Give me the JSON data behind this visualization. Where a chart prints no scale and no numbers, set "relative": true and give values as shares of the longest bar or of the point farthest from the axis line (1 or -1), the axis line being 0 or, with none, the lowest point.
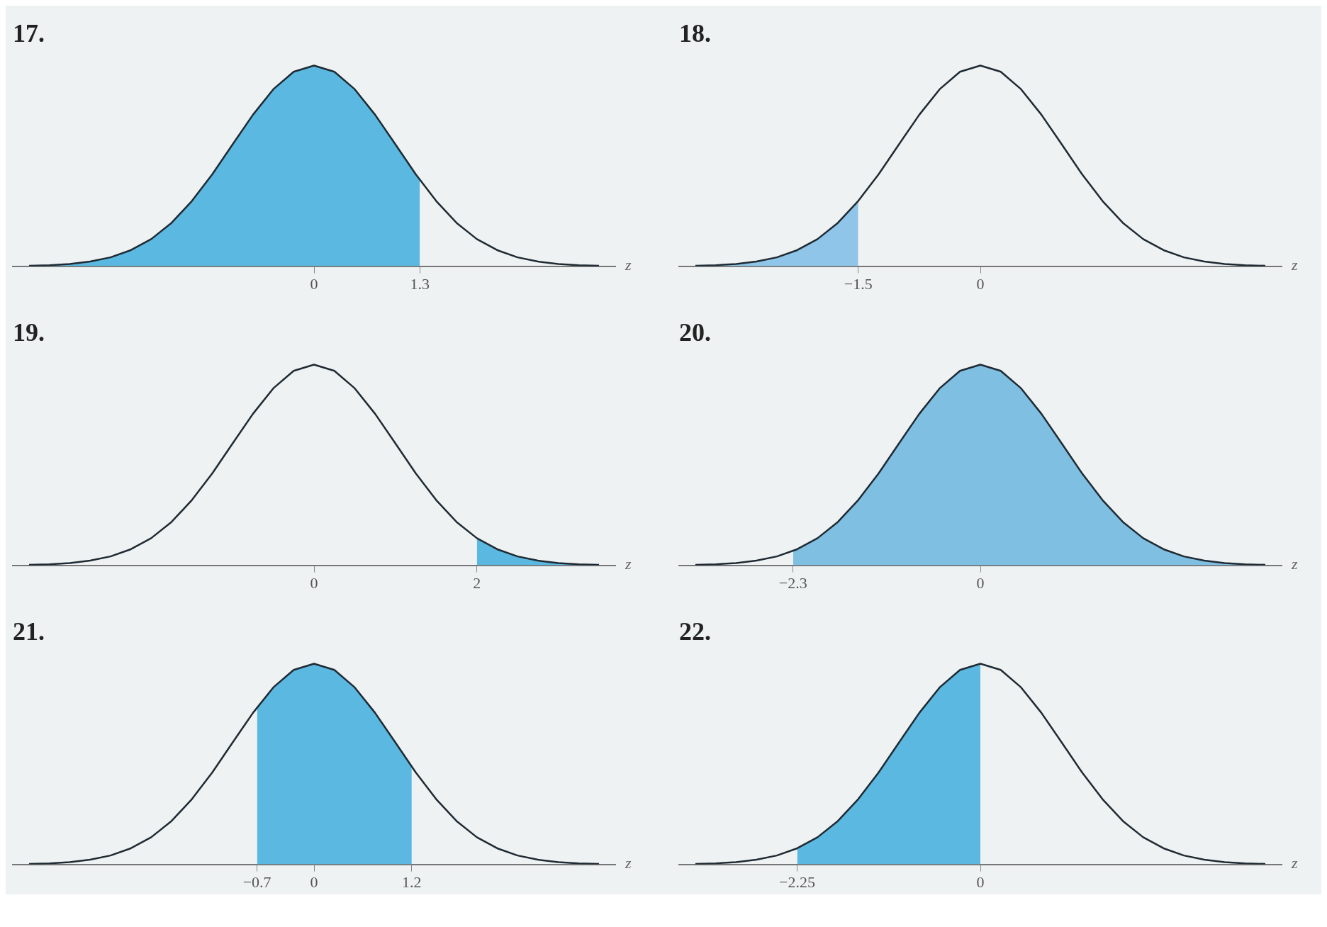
{
  "chart_data": [
    {
      "type": "line",
      "title": "17.",
      "xlabel": "z",
      "relative": true,
      "xlim": [
        -3.7,
        3.7
      ],
      "xticks": [
        0,
        1.3
      ],
      "tick_labels": "x",
      "grid": false,
      "legend": false,
      "series": [
        {
          "type": "area",
          "color": "#5bb8e0",
          "x": [
            -3.5,
            -3.25,
            -3,
            -2.75,
            -2.5,
            -2.25,
            -2,
            -1.75,
            -1.5,
            -1.25,
            -1,
            -0.75,
            -0.5,
            -0.25,
            0,
            0.25,
            0.5,
            0.75,
            1,
            1.25,
            1.3
          ],
          "values": [
            0.002,
            0.005,
            0.011,
            0.023,
            0.044,
            0.08,
            0.135,
            0.216,
            0.325,
            0.458,
            0.607,
            0.755,
            0.882,
            0.969,
            1,
            0.969,
            0.882,
            0.755,
            0.607,
            0.458,
            0.43
          ]
        },
        {
          "type": "line",
          "color": "#1f2a33",
          "x": [
            -3.5,
            -3.25,
            -3,
            -2.75,
            -2.5,
            -2.25,
            -2,
            -1.75,
            -1.5,
            -1.25,
            -1,
            -0.75,
            -0.5,
            -0.25,
            0,
            0.25,
            0.5,
            0.75,
            1,
            1.25,
            1.5,
            1.75,
            2,
            2.25,
            2.5,
            2.75,
            3,
            3.25,
            3.5
          ],
          "values": [
            0.002,
            0.005,
            0.011,
            0.023,
            0.044,
            0.08,
            0.135,
            0.216,
            0.325,
            0.458,
            0.607,
            0.755,
            0.882,
            0.969,
            1,
            0.969,
            0.882,
            0.755,
            0.607,
            0.458,
            0.325,
            0.216,
            0.135,
            0.08,
            0.044,
            0.023,
            0.011,
            0.005,
            0.002
          ]
        }
      ]
    },
    {
      "type": "line",
      "title": "18.",
      "xlabel": "z",
      "relative": true,
      "xlim": [
        -3.7,
        3.7
      ],
      "xticks": [
        -1.5,
        0
      ],
      "tick_labels": "x",
      "grid": false,
      "legend": false,
      "series": [
        {
          "type": "area",
          "color": "#8ec5e8",
          "x": [
            -3.5,
            -3.25,
            -3,
            -2.75,
            -2.5,
            -2.25,
            -2,
            -1.75,
            -1.5
          ],
          "values": [
            0.002,
            0.005,
            0.011,
            0.023,
            0.044,
            0.08,
            0.135,
            0.216,
            0.325
          ]
        },
        {
          "type": "line",
          "color": "#1f2a33",
          "x": [
            -3.5,
            -3.25,
            -3,
            -2.75,
            -2.5,
            -2.25,
            -2,
            -1.75,
            -1.5,
            -1.25,
            -1,
            -0.75,
            -0.5,
            -0.25,
            0,
            0.25,
            0.5,
            0.75,
            1,
            1.25,
            1.5,
            1.75,
            2,
            2.25,
            2.5,
            2.75,
            3,
            3.25,
            3.5
          ],
          "values": [
            0.002,
            0.005,
            0.011,
            0.023,
            0.044,
            0.08,
            0.135,
            0.216,
            0.325,
            0.458,
            0.607,
            0.755,
            0.882,
            0.969,
            1,
            0.969,
            0.882,
            0.755,
            0.607,
            0.458,
            0.325,
            0.216,
            0.135,
            0.08,
            0.044,
            0.023,
            0.011,
            0.005,
            0.002
          ]
        }
      ]
    },
    {
      "type": "line",
      "title": "19.",
      "xlabel": "z",
      "relative": true,
      "xlim": [
        -3.7,
        3.7
      ],
      "xticks": [
        0,
        2
      ],
      "tick_labels": "x",
      "grid": false,
      "legend": false,
      "series": [
        {
          "type": "area",
          "color": "#5bb8e0",
          "x": [
            2,
            2.25,
            2.5,
            2.75,
            3,
            3.25,
            3.5
          ],
          "values": [
            0.135,
            0.08,
            0.044,
            0.023,
            0.011,
            0.005,
            0.002
          ]
        },
        {
          "type": "line",
          "color": "#1f2a33",
          "x": [
            -3.5,
            -3.25,
            -3,
            -2.75,
            -2.5,
            -2.25,
            -2,
            -1.75,
            -1.5,
            -1.25,
            -1,
            -0.75,
            -0.5,
            -0.25,
            0,
            0.25,
            0.5,
            0.75,
            1,
            1.25,
            1.5,
            1.75,
            2,
            2.25,
            2.5,
            2.75,
            3,
            3.25,
            3.5
          ],
          "values": [
            0.002,
            0.005,
            0.011,
            0.023,
            0.044,
            0.08,
            0.135,
            0.216,
            0.325,
            0.458,
            0.607,
            0.755,
            0.882,
            0.969,
            1,
            0.969,
            0.882,
            0.755,
            0.607,
            0.458,
            0.325,
            0.216,
            0.135,
            0.08,
            0.044,
            0.023,
            0.011,
            0.005,
            0.002
          ]
        }
      ]
    },
    {
      "type": "line",
      "title": "20.",
      "xlabel": "z",
      "relative": true,
      "xlim": [
        -3.7,
        3.7
      ],
      "xticks": [
        -2.3,
        0
      ],
      "tick_labels": "x",
      "grid": false,
      "legend": false,
      "series": [
        {
          "type": "area",
          "color": "#7fbfe2",
          "x": [
            -2.3,
            -2,
            -1.75,
            -1.5,
            -1.25,
            -1,
            -0.75,
            -0.5,
            -0.25,
            0,
            0.25,
            0.5,
            0.75,
            1,
            1.25,
            1.5,
            1.75,
            2,
            2.25,
            2.5,
            2.75,
            3,
            3.25,
            3.5
          ],
          "values": [
            0.071,
            0.135,
            0.216,
            0.325,
            0.458,
            0.607,
            0.755,
            0.882,
            0.969,
            1,
            0.969,
            0.882,
            0.755,
            0.607,
            0.458,
            0.325,
            0.216,
            0.135,
            0.08,
            0.044,
            0.023,
            0.011,
            0.005,
            0.002
          ]
        },
        {
          "type": "line",
          "color": "#1f2a33",
          "x": [
            -3.5,
            -3.25,
            -3,
            -2.75,
            -2.5,
            -2.25,
            -2,
            -1.75,
            -1.5,
            -1.25,
            -1,
            -0.75,
            -0.5,
            -0.25,
            0,
            0.25,
            0.5,
            0.75,
            1,
            1.25,
            1.5,
            1.75,
            2,
            2.25,
            2.5,
            2.75,
            3,
            3.25,
            3.5
          ],
          "values": [
            0.002,
            0.005,
            0.011,
            0.023,
            0.044,
            0.08,
            0.135,
            0.216,
            0.325,
            0.458,
            0.607,
            0.755,
            0.882,
            0.969,
            1,
            0.969,
            0.882,
            0.755,
            0.607,
            0.458,
            0.325,
            0.216,
            0.135,
            0.08,
            0.044,
            0.023,
            0.011,
            0.005,
            0.002
          ]
        }
      ]
    },
    {
      "type": "line",
      "title": "21.",
      "xlabel": "z",
      "relative": true,
      "xlim": [
        -3.7,
        3.7
      ],
      "xticks": [
        -0.7,
        0,
        1.2
      ],
      "tick_labels": "x",
      "grid": false,
      "legend": false,
      "series": [
        {
          "type": "area",
          "color": "#5bb8e0",
          "x": [
            -0.7,
            -0.5,
            -0.25,
            0,
            0.25,
            0.5,
            0.75,
            1,
            1.2
          ],
          "values": [
            0.783,
            0.882,
            0.969,
            1,
            0.969,
            0.882,
            0.755,
            0.607,
            0.487
          ]
        },
        {
          "type": "line",
          "color": "#1f2a33",
          "x": [
            -3.5,
            -3.25,
            -3,
            -2.75,
            -2.5,
            -2.25,
            -2,
            -1.75,
            -1.5,
            -1.25,
            -1,
            -0.75,
            -0.5,
            -0.25,
            0,
            0.25,
            0.5,
            0.75,
            1,
            1.25,
            1.5,
            1.75,
            2,
            2.25,
            2.5,
            2.75,
            3,
            3.25,
            3.5
          ],
          "values": [
            0.002,
            0.005,
            0.011,
            0.023,
            0.044,
            0.08,
            0.135,
            0.216,
            0.325,
            0.458,
            0.607,
            0.755,
            0.882,
            0.969,
            1,
            0.969,
            0.882,
            0.755,
            0.607,
            0.458,
            0.325,
            0.216,
            0.135,
            0.08,
            0.044,
            0.023,
            0.011,
            0.005,
            0.002
          ]
        }
      ]
    },
    {
      "type": "line",
      "title": "22.",
      "xlabel": "z",
      "relative": true,
      "xlim": [
        -3.7,
        3.7
      ],
      "xticks": [
        -2.25,
        0
      ],
      "tick_labels": "x",
      "grid": false,
      "legend": false,
      "series": [
        {
          "type": "area",
          "color": "#5bb8e0",
          "x": [
            -2.25,
            -2,
            -1.75,
            -1.5,
            -1.25,
            -1,
            -0.75,
            -0.5,
            -0.25,
            0
          ],
          "values": [
            0.08,
            0.135,
            0.216,
            0.325,
            0.458,
            0.607,
            0.755,
            0.882,
            0.969,
            1
          ]
        },
        {
          "type": "line",
          "color": "#1f2a33",
          "x": [
            -3.5,
            -3.25,
            -3,
            -2.75,
            -2.5,
            -2.25,
            -2,
            -1.75,
            -1.5,
            -1.25,
            -1,
            -0.75,
            -0.5,
            -0.25,
            0,
            0.25,
            0.5,
            0.75,
            1,
            1.25,
            1.5,
            1.75,
            2,
            2.25,
            2.5,
            2.75,
            3,
            3.25,
            3.5
          ],
          "values": [
            0.002,
            0.005,
            0.011,
            0.023,
            0.044,
            0.08,
            0.135,
            0.216,
            0.325,
            0.458,
            0.607,
            0.755,
            0.882,
            0.969,
            1,
            0.969,
            0.882,
            0.755,
            0.607,
            0.458,
            0.325,
            0.216,
            0.135,
            0.08,
            0.044,
            0.023,
            0.011,
            0.005,
            0.002
          ]
        }
      ]
    }
  ]
}
